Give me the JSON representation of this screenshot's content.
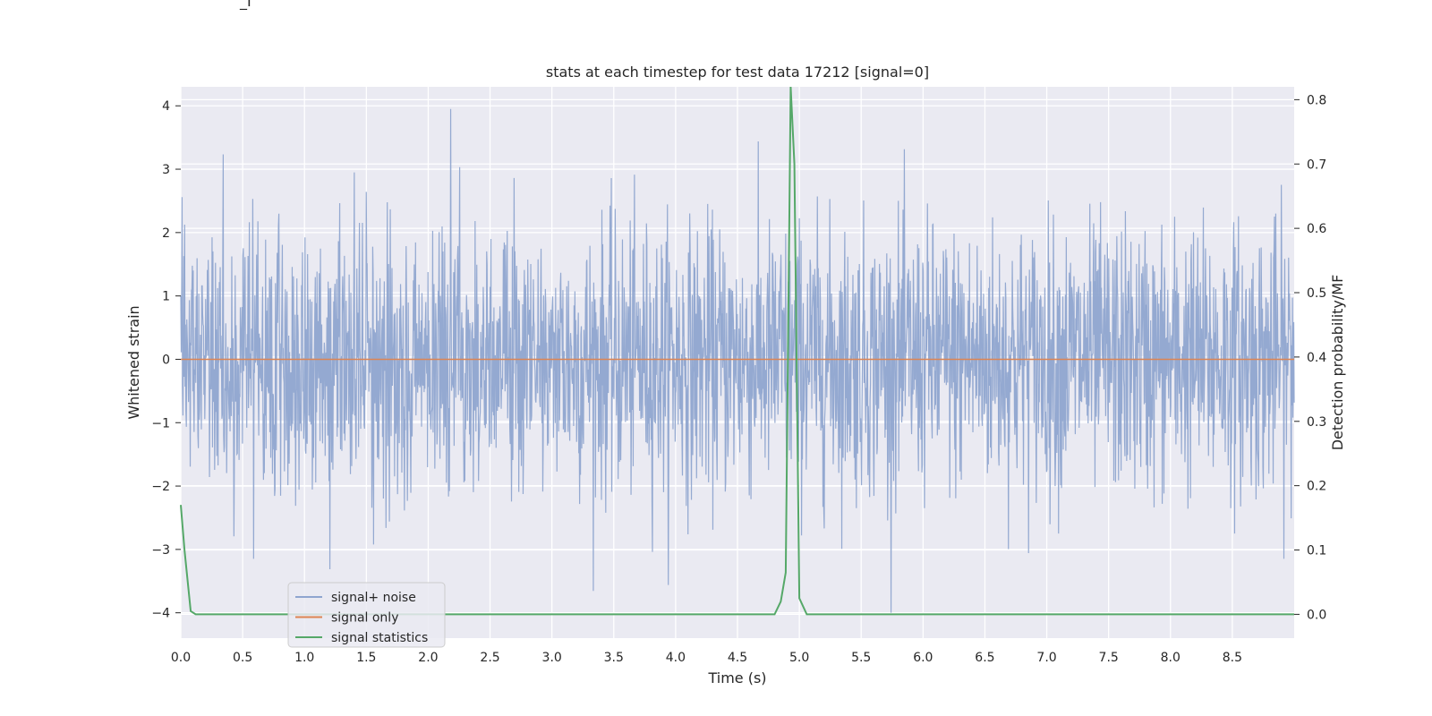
{
  "header_fragment": "_I",
  "chart_data": {
    "type": "line",
    "title": "stats at each timestep for test data 17212 [signal=0]",
    "xlabel": "Time (s)",
    "ylabel": "Whitened strain",
    "ylabel_right": "Detection probability/MF",
    "xlim": [
      0,
      9
    ],
    "ylim": [
      -4.4,
      4.3
    ],
    "ylim_right": [
      -0.037,
      0.82
    ],
    "x_ticks": [
      "0.0",
      "0.5",
      "1.0",
      "1.5",
      "2.0",
      "2.5",
      "3.0",
      "3.5",
      "4.0",
      "4.5",
      "5.0",
      "5.5",
      "6.0",
      "6.5",
      "7.0",
      "7.5",
      "8.0",
      "8.5"
    ],
    "y_ticks": [
      "4",
      "3",
      "2",
      "1",
      "0",
      "−1",
      "−2",
      "−3",
      "−4"
    ],
    "y_ticks_right": [
      "0.8",
      "0.7",
      "0.6",
      "0.5",
      "0.4",
      "0.3",
      "0.2",
      "0.1",
      "0.0"
    ],
    "grid": true,
    "legend_position": "lower-left",
    "legend": [
      "signal+ noise",
      "signal only",
      "signal statistics"
    ],
    "colors": {
      "noise": "#8fa5cf",
      "signal_only": "#dd8452",
      "statistics": "#55a868",
      "background": "#eaeaf2",
      "grid": "#ffffff"
    },
    "series": [
      {
        "name": "signal+ noise",
        "description_note": "dense noisy strain, approx. range -4 to 4",
        "approx_envelope": [
          -4.0,
          3.95
        ]
      },
      {
        "name": "signal only",
        "x": [
          0,
          9
        ],
        "y": [
          0,
          0
        ]
      },
      {
        "name": "signal statistics",
        "axis": "right",
        "x": [
          0.0,
          0.03,
          0.08,
          0.12,
          0.2,
          4.8,
          4.85,
          4.89,
          4.93,
          4.96,
          5.0,
          5.06,
          9.0
        ],
        "y": [
          0.17,
          0.1,
          0.005,
          0.0,
          0.0,
          0.0,
          0.02,
          0.065,
          0.82,
          0.7,
          0.025,
          0.0,
          0.0
        ]
      }
    ]
  }
}
